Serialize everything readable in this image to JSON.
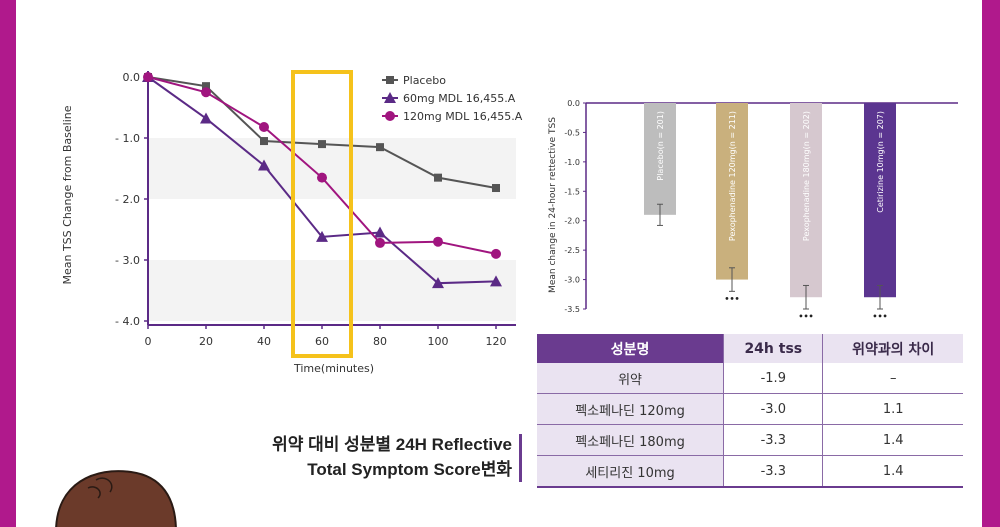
{
  "chart_data": [
    {
      "type": "line",
      "x": [
        0,
        20,
        40,
        60,
        80,
        100,
        120
      ],
      "xlabel": "Time(minutes)",
      "ylabel": "Mean TSS Change from Baseline",
      "xticks": [
        "0",
        "20",
        "40",
        "60",
        "80",
        "100",
        "120"
      ],
      "yticks": [
        "0.0",
        "- 1.0",
        "- 2.0",
        "- 3.0",
        "- 4.0"
      ],
      "ylim": [
        -4.0,
        0.0
      ],
      "xlim": [
        0,
        120
      ],
      "series": [
        {
          "name": "Placebo",
          "marker": "square",
          "color": "#555555",
          "values": [
            0.0,
            -0.15,
            -1.05,
            -1.1,
            -1.15,
            -1.65,
            -1.82
          ]
        },
        {
          "name": "60mg MDL 16,455.A",
          "marker": "triangle",
          "color": "#5b2a86",
          "values": [
            0.0,
            -0.68,
            -1.45,
            -2.62,
            -2.55,
            -3.38,
            -3.35
          ]
        },
        {
          "name": "120mg MDL 16,455.A",
          "marker": "circle",
          "color": "#a0157f",
          "values": [
            0.0,
            -0.25,
            -0.82,
            -1.65,
            -2.72,
            -2.7,
            -2.9
          ]
        }
      ],
      "highlight_x": 60,
      "highlight_color": "#f5c21b",
      "grid": "shaded bands",
      "legend": "top-right"
    },
    {
      "type": "bar",
      "ylabel": "Mean change in 24-hour rettective TSS",
      "yticks": [
        "0.0",
        "-0.5",
        "-1.0",
        "-1.5",
        "-2.0",
        "-2.5",
        "-3.0",
        "-3.5"
      ],
      "ylim": [
        -3.5,
        0.0
      ],
      "categories": [
        "Placebo(n = 201)",
        "Pexophenadine 120mg(n = 211)",
        "Pexophenadine 180mg(n = 202)",
        "Cetirizine 10mg(n = 207)"
      ],
      "values": [
        -1.9,
        -3.0,
        -3.3,
        -3.3
      ],
      "errors": [
        0.18,
        0.2,
        0.2,
        0.2
      ],
      "significance": [
        "",
        "•••",
        "•••",
        "•••"
      ],
      "colors": [
        "#bdbdbd",
        "#c9b07d",
        "#d6c8cf",
        "#5b3590"
      ],
      "legend": "none"
    }
  ],
  "table": {
    "headers": [
      "성분명",
      "24h tss",
      "위약과의 차이"
    ],
    "rows": [
      [
        "위약",
        "-1.9",
        "–"
      ],
      [
        "펙소페나딘 120mg",
        "-3.0",
        "1.1"
      ],
      [
        "펙소페나딘 180mg",
        "-3.3",
        "1.4"
      ],
      [
        "세티리진 10mg",
        "-3.3",
        "1.4"
      ]
    ]
  },
  "caption": {
    "line1": "위약 대비 성분별 24H Reflective",
    "line2": "Total Symptom Score변화"
  },
  "colors": {
    "frame": "#b0198c",
    "accent": "#6a3b8f",
    "highlight": "#f5c21b"
  }
}
